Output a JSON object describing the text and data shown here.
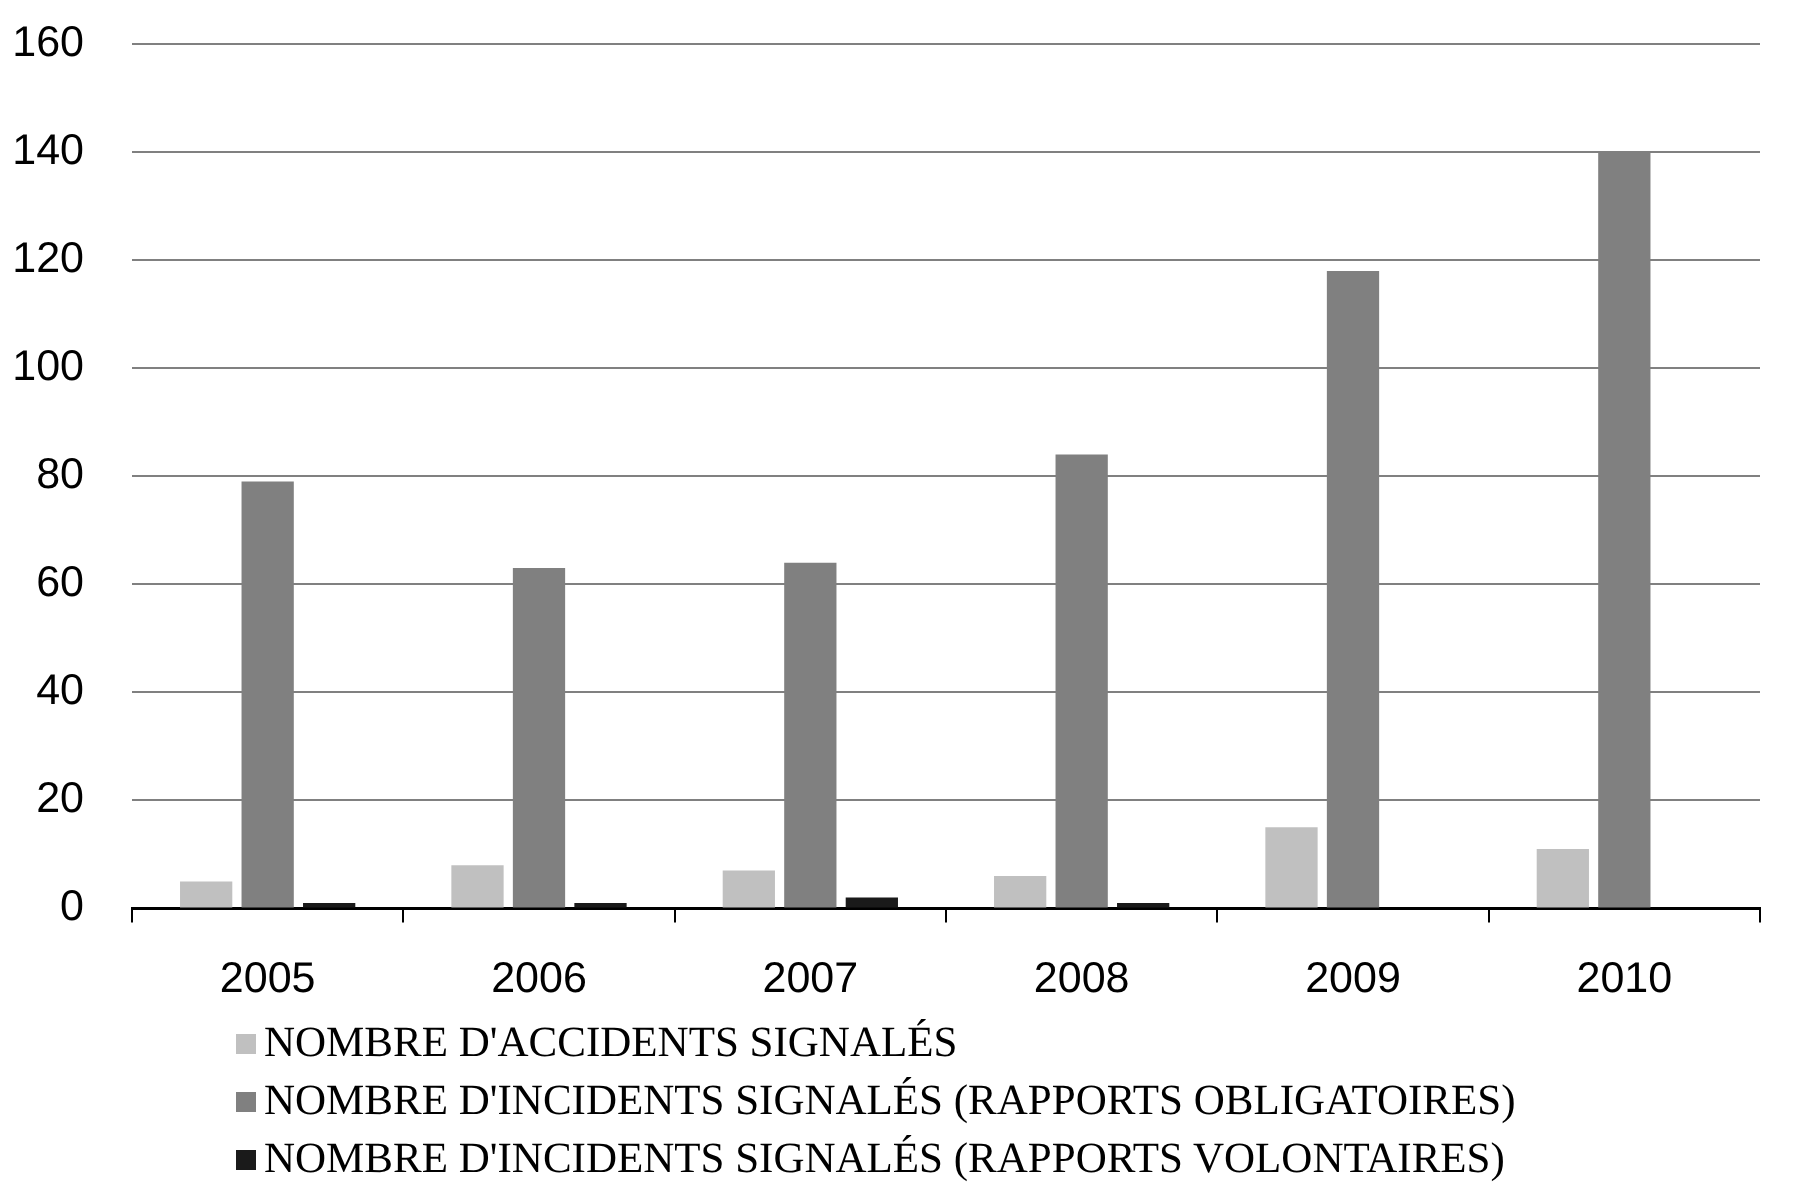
{
  "chart_data": {
    "type": "bar",
    "categories": [
      "2005",
      "2006",
      "2007",
      "2008",
      "2009",
      "2010"
    ],
    "series": [
      {
        "name": "NOMBRE D'ACCIDENTS SIGNALÉS",
        "color": "#c0c0c0",
        "values": [
          5,
          8,
          7,
          6,
          15,
          11
        ]
      },
      {
        "name": "NOMBRE D'INCIDENTS SIGNALÉS (RAPPORTS OBLIGATOIRES)",
        "color": "#808080",
        "values": [
          79,
          63,
          64,
          84,
          118,
          140
        ]
      },
      {
        "name": "NOMBRE D'INCIDENTS SIGNALÉS (RAPPORTS VOLONTAIRES)",
        "color": "#1a1a1a",
        "values": [
          1,
          1,
          2,
          1,
          0,
          0
        ]
      }
    ],
    "ylim": [
      0,
      160
    ],
    "yticks": [
      0,
      20,
      40,
      60,
      80,
      100,
      120,
      140,
      160
    ],
    "grid": "y",
    "legend": "bottom left"
  }
}
